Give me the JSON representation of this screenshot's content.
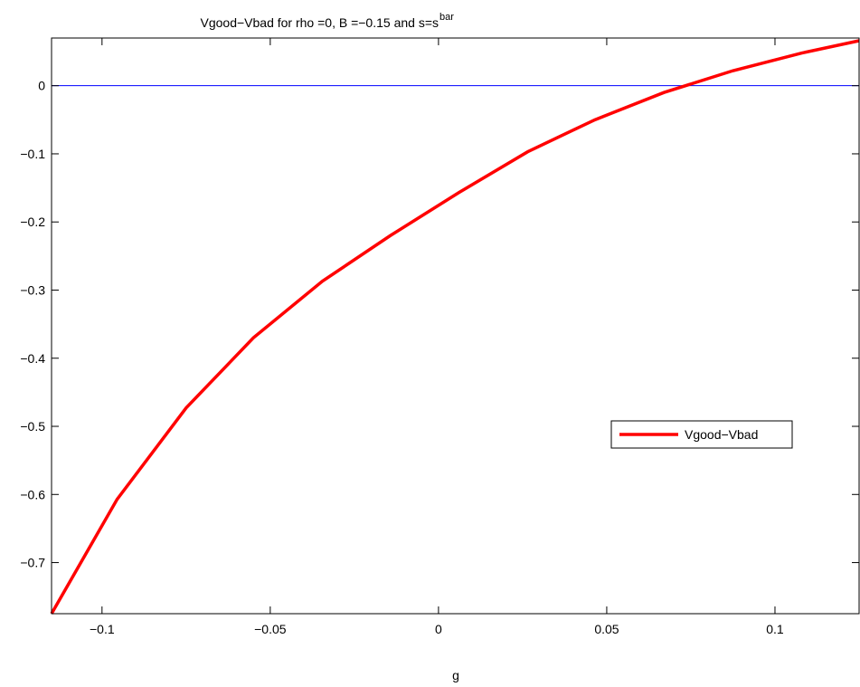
{
  "chart_data": {
    "type": "line",
    "title": "Vgood−Vbad for rho =0, B =−0.15 and s=s",
    "title_superscript": "bar",
    "xlabel": "g",
    "ylabel": "",
    "xlim": [
      -0.115,
      0.125
    ],
    "ylim": [
      -0.775,
      0.07
    ],
    "x_ticks": [
      -0.1,
      -0.05,
      0,
      0.05,
      0.1
    ],
    "x_tick_labels": [
      "−0.1",
      "−0.05",
      "0",
      "0.05",
      "0.1"
    ],
    "y_ticks": [
      0,
      -0.1,
      -0.2,
      -0.3,
      -0.4,
      -0.5,
      -0.6,
      -0.7
    ],
    "y_tick_labels": [
      "0",
      "−0.1",
      "−0.2",
      "−0.3",
      "−0.4",
      "−0.5",
      "−0.6",
      "−0.7"
    ],
    "grid": false,
    "legend_position": "right",
    "reference_line": {
      "y": 0,
      "color": "#0000ff"
    },
    "series": [
      {
        "name": "Vgood−Vbad",
        "color": "#ff0000",
        "x": [
          -0.115,
          -0.0955,
          -0.075,
          -0.055,
          -0.0345,
          -0.0143,
          0.006,
          0.0265,
          0.0465,
          0.067,
          0.0875,
          0.108,
          0.125
        ],
        "y": [
          -0.775,
          -0.607,
          -0.473,
          -0.37,
          -0.287,
          -0.22,
          -0.157,
          -0.097,
          -0.05,
          -0.01,
          0.022,
          0.048,
          0.066
        ]
      }
    ]
  }
}
